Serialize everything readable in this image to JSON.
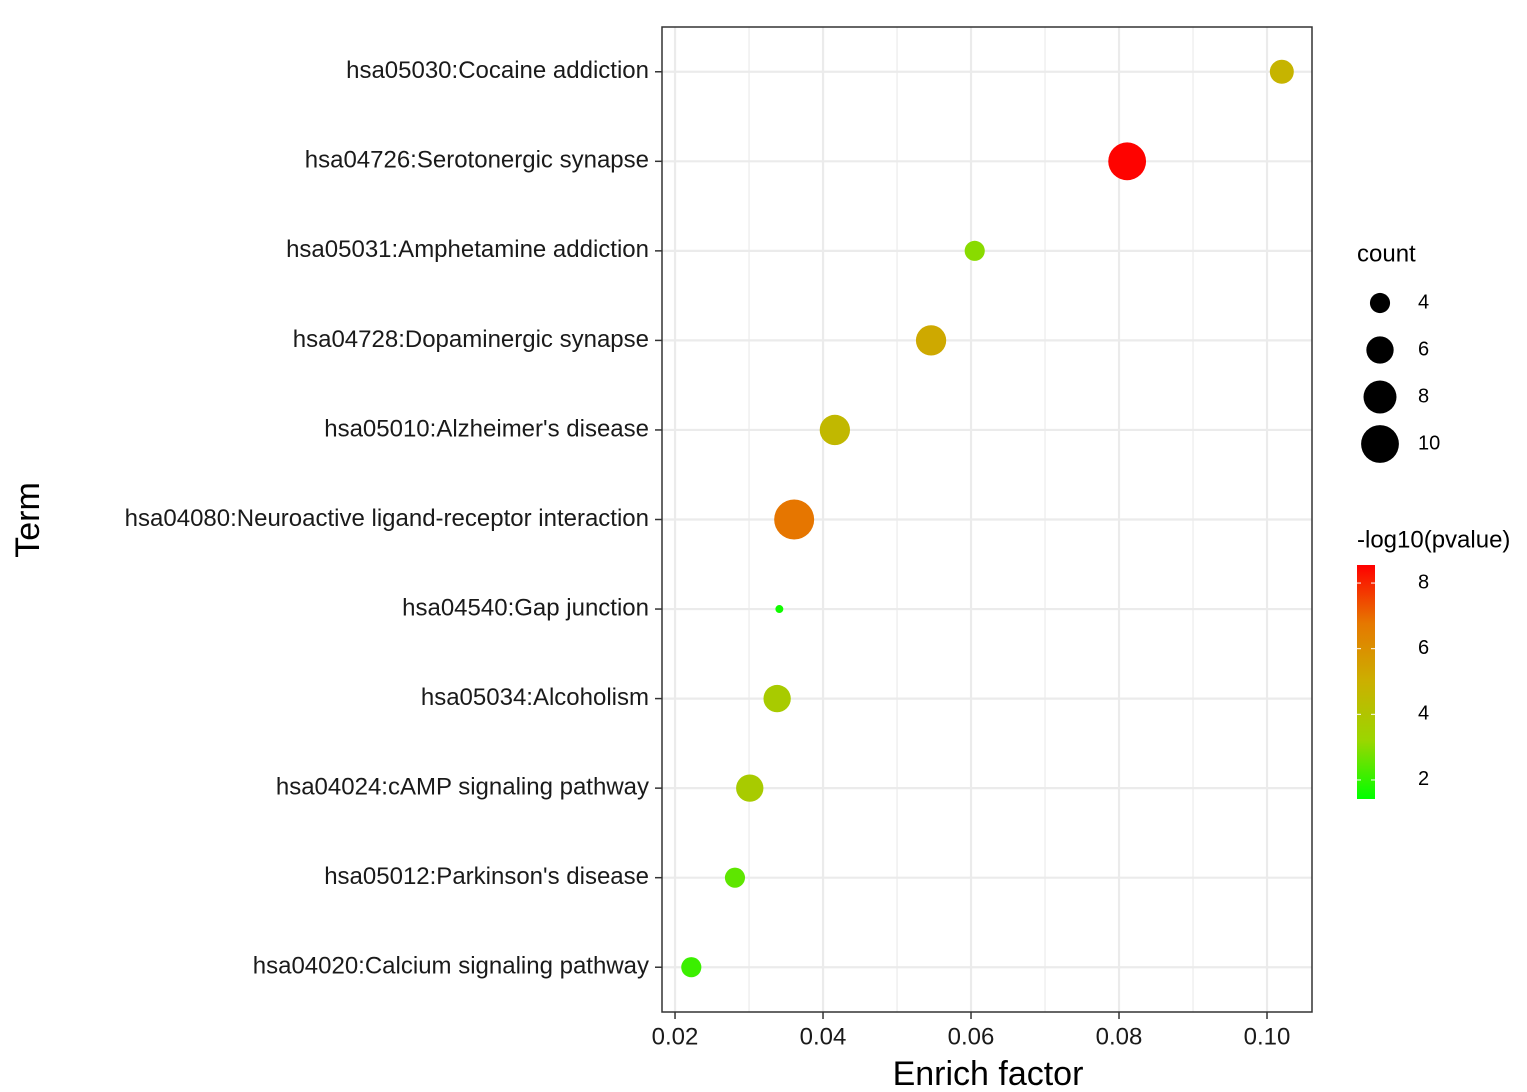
{
  "chart_data": {
    "type": "scatter",
    "x_label": "Enrich factor",
    "y_label": "Term",
    "categories": [
      "hsa05030:Cocaine addiction",
      "hsa04726:Serotonergic synapse",
      "hsa05031:Amphetamine addiction",
      "hsa04728:Dopaminergic synapse",
      "hsa05010:Alzheimer's disease",
      "hsa04080:Neuroactive ligand-receptor interaction",
      "hsa04540:Gap junction",
      "hsa05034:Alcoholism",
      "hsa04024:cAMP signaling pathway",
      "hsa05012:Parkinson's disease",
      "hsa04020:Calcium signaling pathway"
    ],
    "x": [
      0.102,
      0.0811,
      0.0605,
      0.0546,
      0.0416,
      0.0361,
      0.0341,
      0.0338,
      0.0301,
      0.0281,
      0.0222
    ],
    "count": [
      5,
      10,
      4,
      7,
      7,
      11,
      2,
      6,
      6,
      4,
      4
    ],
    "neg_log10_pvalue": [
      4.8,
      8.5,
      3.0,
      5.2,
      4.6,
      6.8,
      1.6,
      3.7,
      3.7,
      2.5,
      2.1
    ],
    "xlim": [
      0.01824,
      0.10608
    ],
    "xticks": [
      0.02,
      0.04,
      0.06,
      0.08,
      {
        "value": 0.1,
        "label": "0.10"
      }
    ],
    "x_minor_grid": [
      0.03,
      0.05,
      0.07,
      0.09
    ],
    "grid": true,
    "size_legend_title": "count",
    "size_ticks": [
      4,
      6,
      8,
      10
    ],
    "color_legend_title": "-log10(pvalue)",
    "color_lim": [
      1.42,
      8.55
    ],
    "color_ticks": [
      2,
      4,
      6,
      8
    ],
    "color_stops": [
      "#00ff00",
      "#9bd600",
      "#cbb000",
      "#e67800",
      "#ff0000"
    ]
  }
}
